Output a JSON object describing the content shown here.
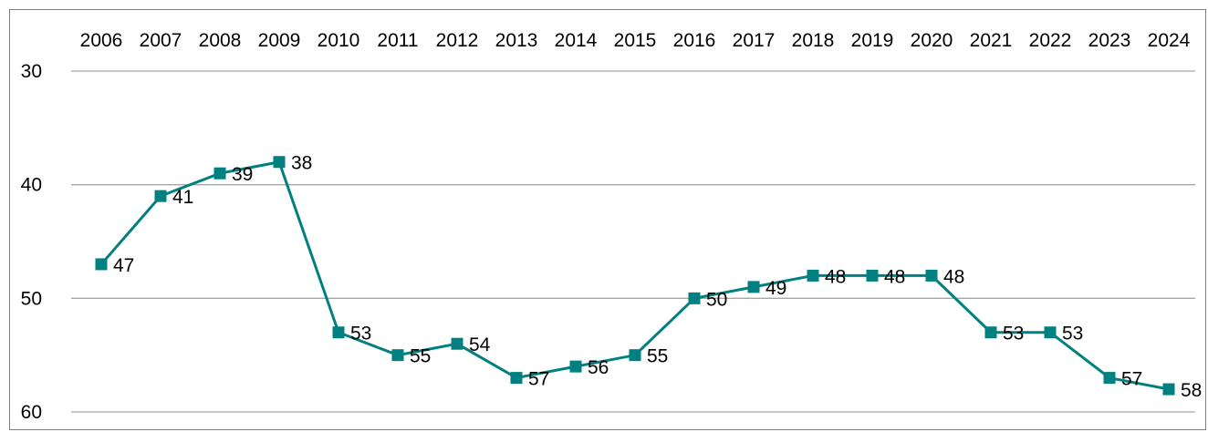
{
  "chart_data": {
    "type": "line",
    "title": "",
    "xlabel": "",
    "ylabel": "",
    "x": [
      "2006",
      "2007",
      "2008",
      "2009",
      "2010",
      "2011",
      "2012",
      "2013",
      "2014",
      "2015",
      "2016",
      "2017",
      "2018",
      "2019",
      "2020",
      "2021",
      "2022",
      "2023",
      "2024"
    ],
    "series": [
      {
        "values": [
          47,
          41,
          39,
          38,
          53,
          55,
          54,
          57,
          56,
          55,
          50,
          49,
          48,
          48,
          48,
          53,
          53,
          57,
          58
        ],
        "color": "#008080"
      }
    ],
    "ylim": [
      30,
      60
    ],
    "y_inverted": true,
    "yticks": [
      30,
      40,
      50,
      60
    ],
    "x_axis_position": "top",
    "grid": true,
    "marker": "square",
    "data_labels": true
  }
}
